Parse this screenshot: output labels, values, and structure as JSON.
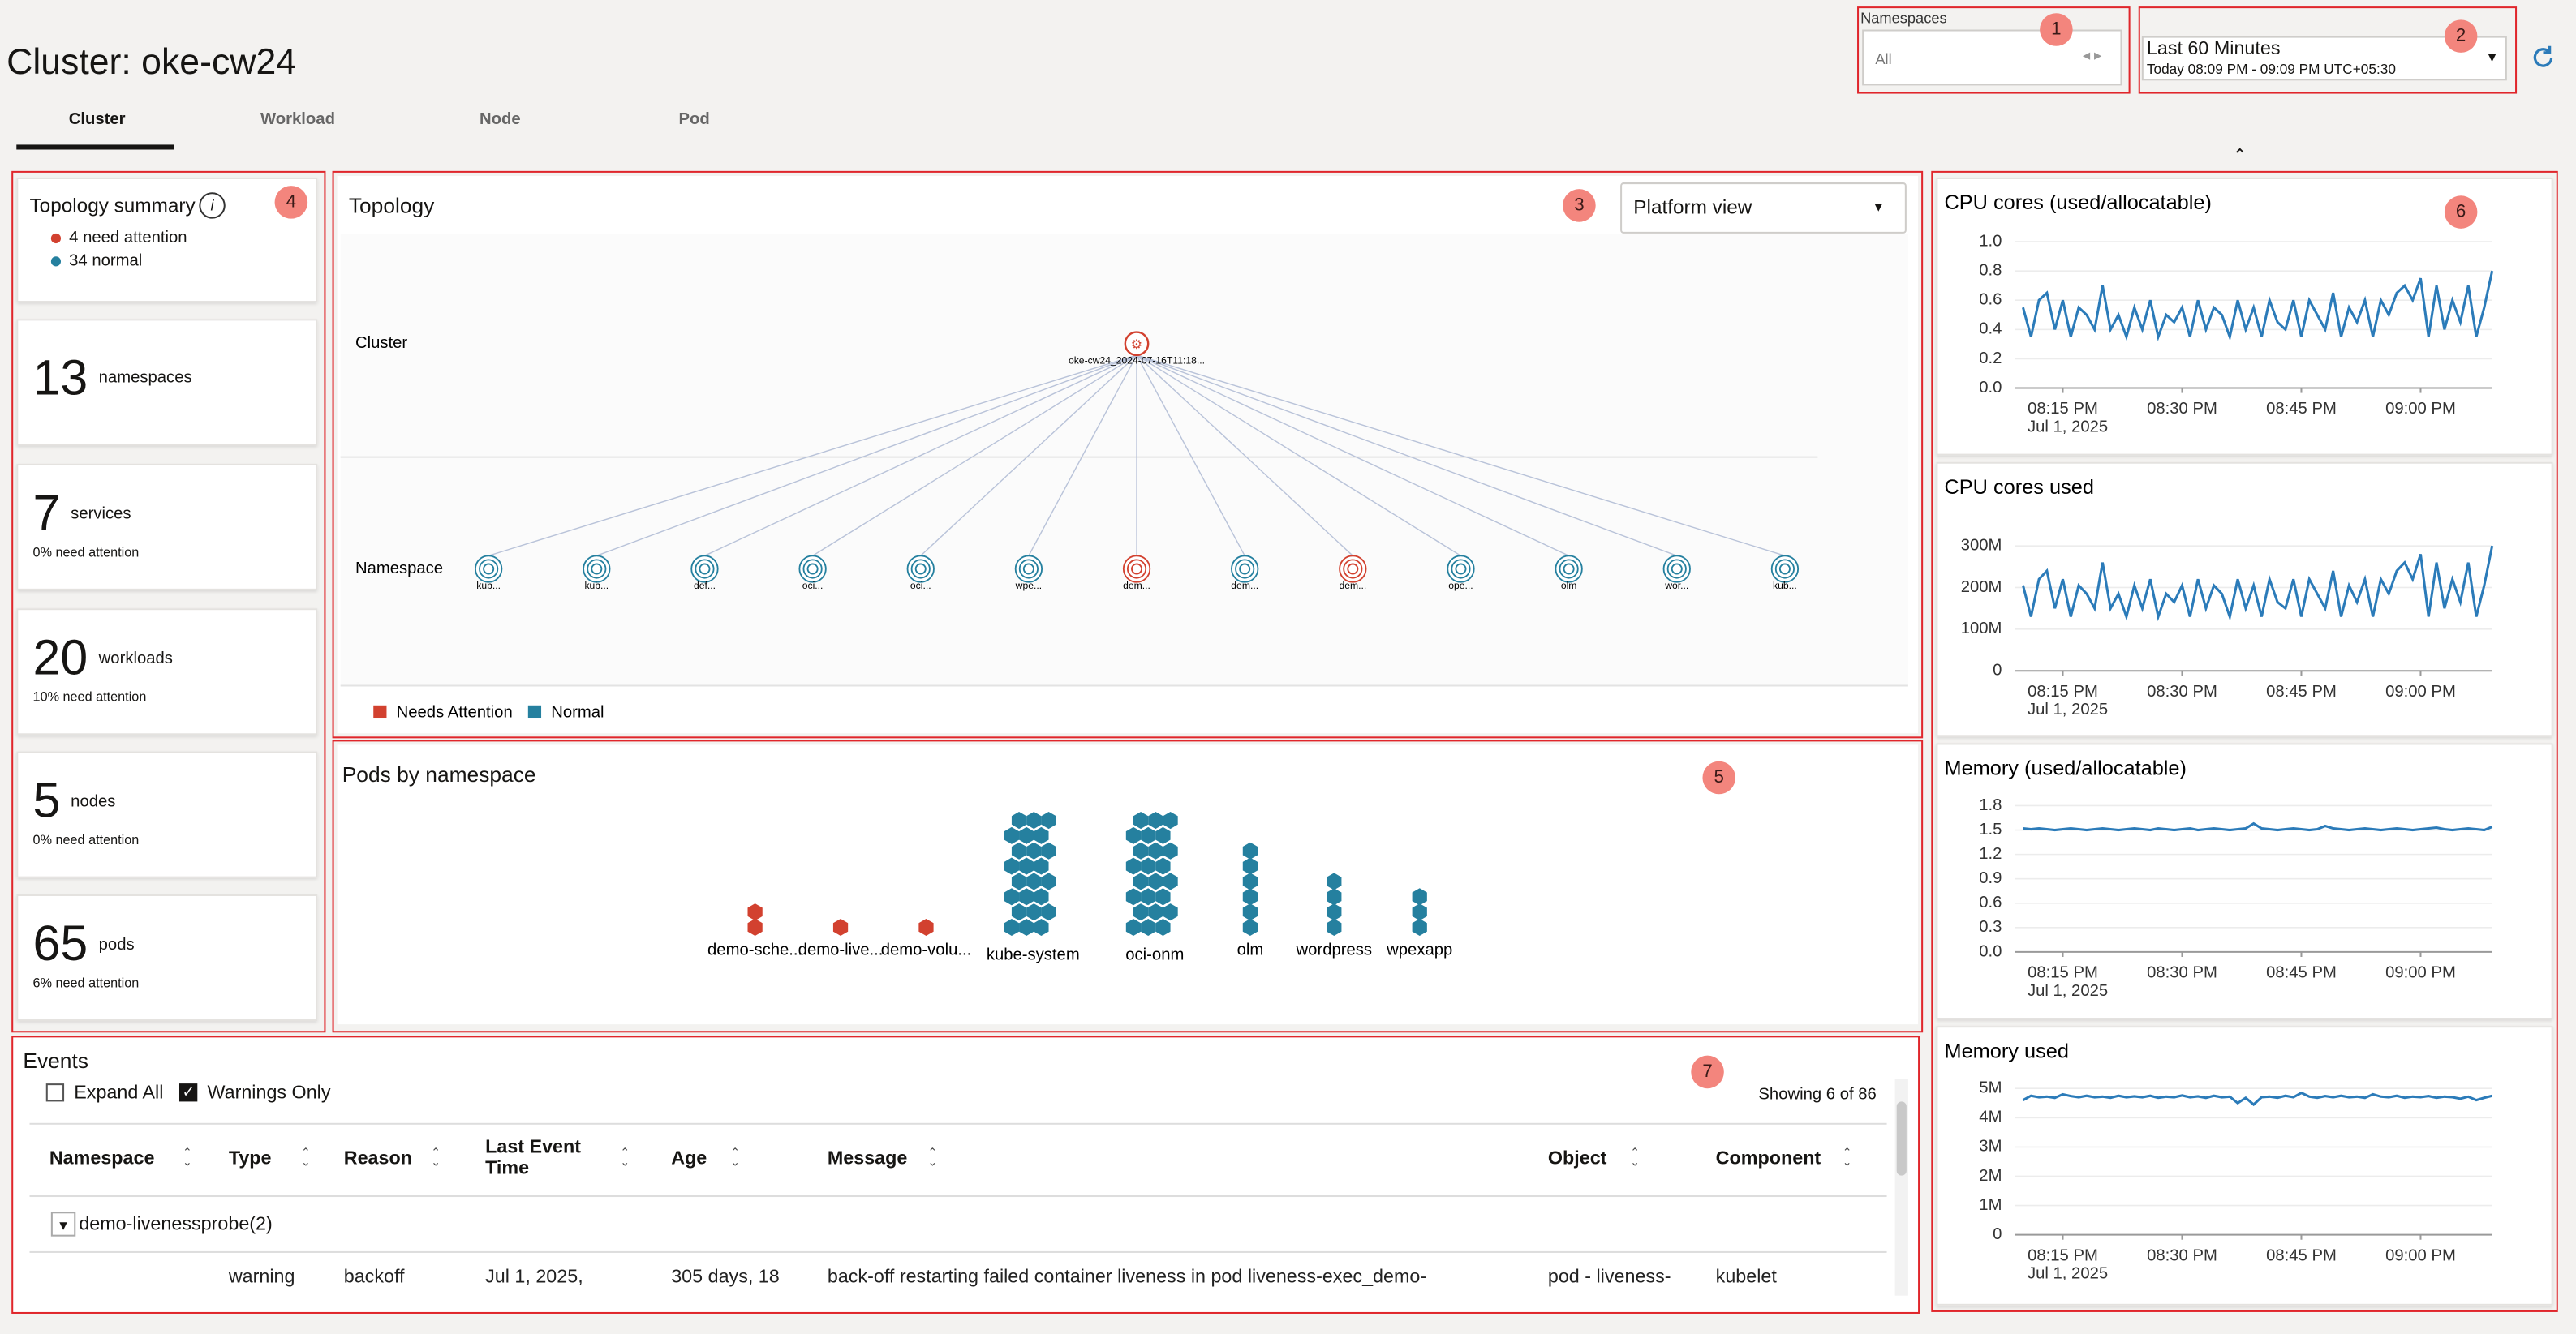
{
  "header": {
    "title": "Cluster: oke-cw24",
    "tabs": [
      "Cluster",
      "Workload",
      "Node",
      "Pod"
    ],
    "namespaces_label": "Namespaces",
    "namespaces_value": "All",
    "time_range": "Last 60 Minutes",
    "time_detail": "Today 08:09 PM - 09:09 PM UTC+05:30"
  },
  "badges": [
    "1",
    "2",
    "3",
    "4",
    "5",
    "6",
    "7"
  ],
  "status_colors": {
    "attention": "#d2412f",
    "normal": "#25809f"
  },
  "summary": {
    "title": "Topology summary",
    "attention": "4 need attention",
    "normal": "34 normal"
  },
  "cards": [
    {
      "count": 13,
      "label": "namespaces"
    },
    {
      "count": 7,
      "label": "services",
      "note": "0% need attention"
    },
    {
      "count": 20,
      "label": "workloads",
      "note": "10% need attention"
    },
    {
      "count": 5,
      "label": "nodes",
      "note": "0% need attention"
    },
    {
      "count": 65,
      "label": "pods",
      "note": "6% need attention"
    }
  ],
  "topology": {
    "title": "Topology",
    "view": "Platform view",
    "rows": [
      "Cluster",
      "Namespace"
    ],
    "cluster": "oke-cw24_2024-07-16T11:18...",
    "namespaces": [
      {
        "label": "kub...",
        "status": "normal"
      },
      {
        "label": "kub...",
        "status": "normal"
      },
      {
        "label": "def...",
        "status": "normal"
      },
      {
        "label": "oci...",
        "status": "normal"
      },
      {
        "label": "oci...",
        "status": "normal"
      },
      {
        "label": "wpe...",
        "status": "normal"
      },
      {
        "label": "dem...",
        "status": "attention"
      },
      {
        "label": "dem...",
        "status": "normal"
      },
      {
        "label": "dem...",
        "status": "attention"
      },
      {
        "label": "ope...",
        "status": "normal"
      },
      {
        "label": "olm",
        "status": "normal"
      },
      {
        "label": "wor...",
        "status": "normal"
      },
      {
        "label": "kub...",
        "status": "normal"
      }
    ],
    "legend": [
      {
        "name": "Needs Attention",
        "status": "attention"
      },
      {
        "name": "Normal",
        "status": "normal"
      }
    ]
  },
  "pods": {
    "title": "Pods by namespace",
    "groups": [
      {
        "name": "demo-sche...",
        "count": 2,
        "status": "attention"
      },
      {
        "name": "demo-live...",
        "count": 1,
        "status": "attention"
      },
      {
        "name": "demo-volu...",
        "count": 1,
        "status": "attention"
      },
      {
        "name": "kube-system",
        "count": 24,
        "status": "normal"
      },
      {
        "name": "oci-onm",
        "count": 24,
        "status": "normal"
      },
      {
        "name": "olm",
        "count": 6,
        "status": "normal"
      },
      {
        "name": "wordpress",
        "count": 4,
        "status": "normal"
      },
      {
        "name": "wpexapp",
        "count": 3,
        "status": "normal"
      }
    ]
  },
  "events": {
    "title": "Events",
    "expand_all": "Expand All",
    "warnings_only": "Warnings Only",
    "showing": "Showing 6 of 86",
    "columns": [
      "Namespace",
      "Type",
      "Reason",
      "Last Event Time",
      "Age",
      "Message",
      "Object",
      "Component"
    ],
    "group": "demo-livenessprobe(2)",
    "rows": [
      [
        "warning",
        "backoff",
        "Jul 1, 2025,",
        "305 days, 18",
        "back-off restarting failed container liveness in pod liveness-exec_demo-",
        "pod - liveness-",
        "kubelet"
      ]
    ]
  },
  "charts": [
    {
      "type": "line",
      "title": "CPU cores (used/allocatable)",
      "color": "#2b7bb9",
      "date_label": "Jul 1, 2025",
      "grid": true,
      "xlim": [
        9,
        69
      ],
      "xticks": [
        {
          "value": 15,
          "label": "08:15 PM"
        },
        {
          "value": 30,
          "label": "08:30 PM"
        },
        {
          "value": 45,
          "label": "08:45 PM"
        },
        {
          "value": 60,
          "label": "09:00 PM"
        }
      ],
      "ylim": [
        0,
        1
      ],
      "yticks": [
        {
          "value": 0,
          "label": "0.0"
        },
        0.2,
        0.4,
        0.6,
        0.8,
        {
          "value": 1,
          "label": "1.0"
        }
      ],
      "x": [
        10,
        11,
        12,
        13,
        14,
        15,
        16,
        17,
        18,
        19,
        20,
        21,
        22,
        23,
        24,
        25,
        26,
        27,
        28,
        29,
        30,
        31,
        32,
        33,
        34,
        35,
        36,
        37,
        38,
        39,
        40,
        41,
        42,
        43,
        44,
        45,
        46,
        47,
        48,
        49,
        50,
        51,
        52,
        53,
        54,
        55,
        56,
        57,
        58,
        59,
        60,
        61,
        62,
        63,
        64,
        65,
        66,
        67,
        68,
        69
      ],
      "values": [
        0.55,
        0.35,
        0.6,
        0.65,
        0.4,
        0.6,
        0.35,
        0.55,
        0.5,
        0.4,
        0.7,
        0.4,
        0.5,
        0.35,
        0.55,
        0.4,
        0.6,
        0.35,
        0.5,
        0.45,
        0.55,
        0.35,
        0.6,
        0.4,
        0.55,
        0.5,
        0.35,
        0.6,
        0.4,
        0.55,
        0.35,
        0.6,
        0.45,
        0.4,
        0.6,
        0.35,
        0.6,
        0.5,
        0.4,
        0.65,
        0.35,
        0.55,
        0.45,
        0.6,
        0.35,
        0.6,
        0.5,
        0.65,
        0.7,
        0.6,
        0.75,
        0.35,
        0.7,
        0.4,
        0.6,
        0.45,
        0.7,
        0.35,
        0.55,
        0.8
      ]
    },
    {
      "type": "line",
      "title": "CPU cores used",
      "color": "#2b7bb9",
      "date_label": "Jul 1, 2025",
      "grid": true,
      "xlim": [
        9,
        69
      ],
      "xticks": [
        {
          "value": 15,
          "label": "08:15 PM"
        },
        {
          "value": 30,
          "label": "08:30 PM"
        },
        {
          "value": 45,
          "label": "08:45 PM"
        },
        {
          "value": 60,
          "label": "09:00 PM"
        }
      ],
      "ylim": [
        0,
        330
      ],
      "yticks": [
        0,
        {
          "value": 100,
          "label": "100M"
        },
        {
          "value": 200,
          "label": "200M"
        },
        {
          "value": 300,
          "label": "300M"
        }
      ],
      "x": [
        10,
        11,
        12,
        13,
        14,
        15,
        16,
        17,
        18,
        19,
        20,
        21,
        22,
        23,
        24,
        25,
        26,
        27,
        28,
        29,
        30,
        31,
        32,
        33,
        34,
        35,
        36,
        37,
        38,
        39,
        40,
        41,
        42,
        43,
        44,
        45,
        46,
        47,
        48,
        49,
        50,
        51,
        52,
        53,
        54,
        55,
        56,
        57,
        58,
        59,
        60,
        61,
        62,
        63,
        64,
        65,
        66,
        67,
        68,
        69
      ],
      "values": [
        205,
        130,
        220,
        240,
        150,
        220,
        130,
        205,
        185,
        150,
        260,
        150,
        185,
        130,
        205,
        150,
        220,
        130,
        185,
        165,
        205,
        130,
        220,
        150,
        205,
        185,
        130,
        220,
        150,
        205,
        130,
        220,
        165,
        150,
        220,
        130,
        220,
        185,
        150,
        240,
        130,
        205,
        165,
        220,
        130,
        220,
        185,
        240,
        260,
        220,
        280,
        130,
        260,
        150,
        220,
        165,
        260,
        130,
        205,
        300
      ]
    },
    {
      "type": "line",
      "title": "Memory (used/allocatable)",
      "color": "#2b7bb9",
      "date_label": "Jul 1, 2025",
      "grid": true,
      "xlim": [
        9,
        69
      ],
      "xticks": [
        {
          "value": 15,
          "label": "08:15 PM"
        },
        {
          "value": 30,
          "label": "08:30 PM"
        },
        {
          "value": 45,
          "label": "08:45 PM"
        },
        {
          "value": 60,
          "label": "09:00 PM"
        }
      ],
      "ylim": [
        0,
        1.8
      ],
      "yticks": [
        {
          "value": 0,
          "label": "0.0"
        },
        0.3,
        0.6,
        0.9,
        1.2,
        1.5,
        1.8
      ],
      "x": [
        10,
        11,
        12,
        13,
        14,
        15,
        16,
        17,
        18,
        19,
        20,
        21,
        22,
        23,
        24,
        25,
        26,
        27,
        28,
        29,
        30,
        31,
        32,
        33,
        34,
        35,
        36,
        37,
        38,
        39,
        40,
        41,
        42,
        43,
        44,
        45,
        46,
        47,
        48,
        49,
        50,
        51,
        52,
        53,
        54,
        55,
        56,
        57,
        58,
        59,
        60,
        61,
        62,
        63,
        64,
        65,
        66,
        67,
        68,
        69
      ],
      "values": [
        1.52,
        1.51,
        1.52,
        1.51,
        1.5,
        1.51,
        1.52,
        1.51,
        1.5,
        1.51,
        1.52,
        1.51,
        1.5,
        1.51,
        1.52,
        1.51,
        1.5,
        1.52,
        1.51,
        1.5,
        1.51,
        1.52,
        1.5,
        1.51,
        1.52,
        1.51,
        1.5,
        1.51,
        1.52,
        1.58,
        1.52,
        1.51,
        1.5,
        1.51,
        1.52,
        1.51,
        1.5,
        1.51,
        1.55,
        1.52,
        1.51,
        1.5,
        1.51,
        1.52,
        1.51,
        1.5,
        1.51,
        1.52,
        1.51,
        1.5,
        1.51,
        1.52,
        1.53,
        1.51,
        1.5,
        1.51,
        1.52,
        1.51,
        1.5,
        1.54
      ]
    },
    {
      "type": "line",
      "title": "Memory used",
      "color": "#2b7bb9",
      "date_label": "Jul 1, 2025",
      "grid": true,
      "xlim": [
        9,
        69
      ],
      "xticks": [
        {
          "value": 15,
          "label": "08:15 PM"
        },
        {
          "value": 30,
          "label": "08:30 PM"
        },
        {
          "value": 45,
          "label": "08:45 PM"
        },
        {
          "value": 60,
          "label": "09:00 PM"
        }
      ],
      "ylim": [
        0,
        5
      ],
      "yticks": [
        0,
        {
          "value": 1,
          "label": "1M"
        },
        {
          "value": 2,
          "label": "2M"
        },
        {
          "value": 3,
          "label": "3M"
        },
        {
          "value": 4,
          "label": "4M"
        },
        {
          "value": 5,
          "label": "5M"
        }
      ],
      "x": [
        10,
        11,
        12,
        13,
        14,
        15,
        16,
        17,
        18,
        19,
        20,
        21,
        22,
        23,
        24,
        25,
        26,
        27,
        28,
        29,
        30,
        31,
        32,
        33,
        34,
        35,
        36,
        37,
        38,
        39,
        40,
        41,
        42,
        43,
        44,
        45,
        46,
        47,
        48,
        49,
        50,
        51,
        52,
        53,
        54,
        55,
        56,
        57,
        58,
        59,
        60,
        61,
        62,
        63,
        64,
        65,
        66,
        67,
        68,
        69
      ],
      "values": [
        4.6,
        4.75,
        4.7,
        4.72,
        4.68,
        4.8,
        4.74,
        4.7,
        4.75,
        4.7,
        4.72,
        4.68,
        4.75,
        4.7,
        4.73,
        4.7,
        4.75,
        4.68,
        4.72,
        4.7,
        4.76,
        4.7,
        4.73,
        4.68,
        4.75,
        4.7,
        4.72,
        4.5,
        4.68,
        4.45,
        4.7,
        4.72,
        4.68,
        4.75,
        4.7,
        4.85,
        4.72,
        4.68,
        4.74,
        4.7,
        4.75,
        4.7,
        4.72,
        4.68,
        4.8,
        4.72,
        4.7,
        4.75,
        4.68,
        4.72,
        4.7,
        4.74,
        4.68,
        4.72,
        4.7,
        4.65,
        4.72,
        4.6,
        4.68,
        4.75
      ]
    }
  ]
}
